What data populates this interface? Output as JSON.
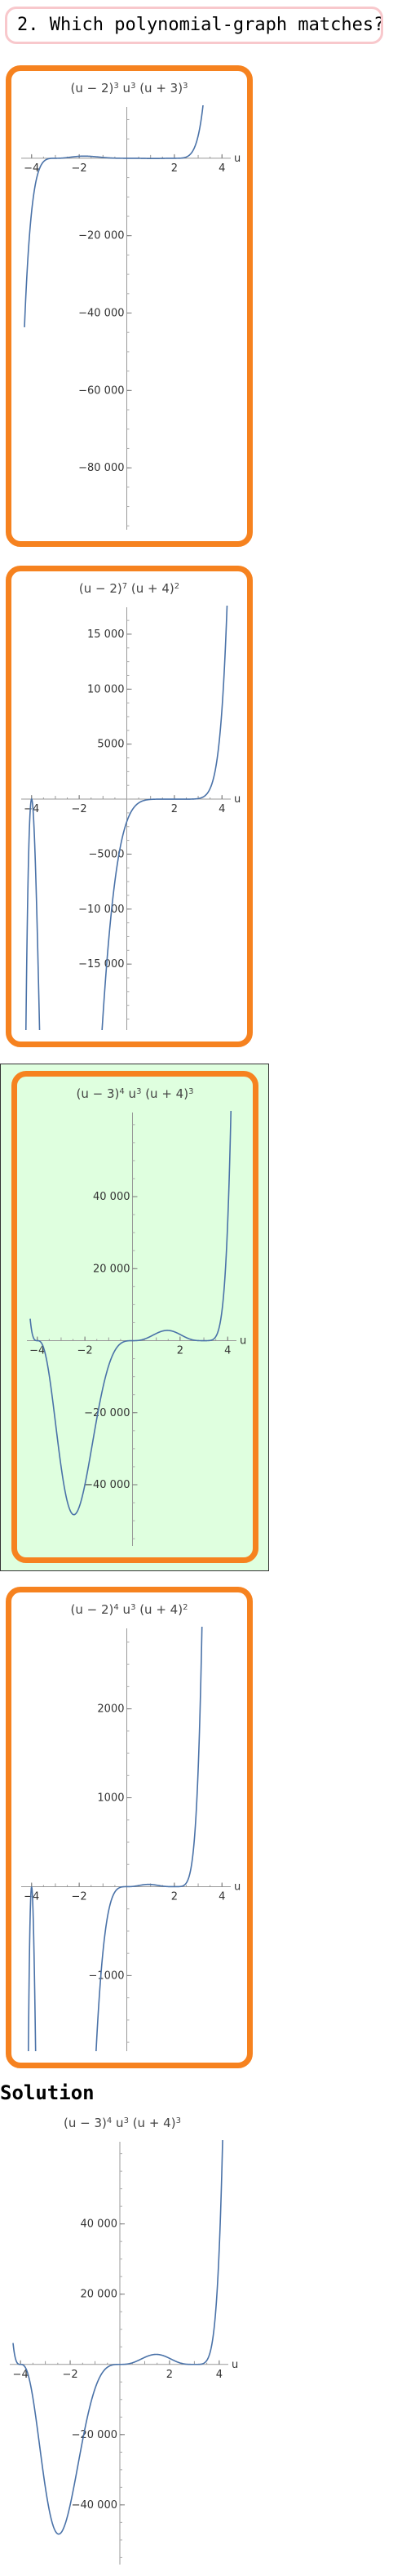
{
  "question": {
    "text": "2. Which polynomial-graph matches?"
  },
  "solution": {
    "label": "Solution"
  },
  "colors": {
    "choice_border": "#f6821f",
    "correct_bg": "#dfffdf",
    "curve": "#4a72a8",
    "question_border": "#f8c8cc"
  },
  "plots": [
    {
      "id": "choice-a",
      "title": {
        "base1": "(u − 2)",
        "exp1": "3",
        "mid": " u",
        "exp2": "3",
        "base3": " (u + 3)",
        "exp3": "3"
      },
      "chart_data": {
        "type": "line",
        "function": "(u-2)^3 u^3 (u+3)^3",
        "x_label": "u",
        "xlim": [
          -4.3,
          4.3
        ],
        "ylim": [
          -96000,
          12000
        ],
        "x_ticks": [
          {
            "v": -4,
            "label": "−4"
          },
          {
            "v": -2,
            "label": "−2"
          },
          {
            "v": 2,
            "label": "2"
          },
          {
            "v": 4,
            "label": "4"
          }
        ],
        "y_ticks": [
          {
            "v": -20000,
            "label": "−20 000"
          },
          {
            "v": -40000,
            "label": "−40 000"
          },
          {
            "v": -60000,
            "label": "−60 000"
          },
          {
            "v": -80000,
            "label": "−80 000"
          }
        ]
      }
    },
    {
      "id": "choice-b",
      "title": {
        "base1": "(u − 2)",
        "exp1": "7",
        "mid": " (u + 4)",
        "exp2": "2",
        "base3": "",
        "exp3": ""
      },
      "chart_data": {
        "type": "line",
        "function": "(u-2)^7 (u+4)^2",
        "x_label": "u",
        "xlim": [
          -4.3,
          4.3
        ],
        "ylim": [
          -21000,
          17000
        ],
        "x_ticks": [
          {
            "v": -4,
            "label": "−4"
          },
          {
            "v": -2,
            "label": "−2"
          },
          {
            "v": 2,
            "label": "2"
          },
          {
            "v": 4,
            "label": "4"
          }
        ],
        "y_ticks": [
          {
            "v": 15000,
            "label": "15 000"
          },
          {
            "v": 10000,
            "label": "10 000"
          },
          {
            "v": 5000,
            "label": "5000"
          },
          {
            "v": -5000,
            "label": "−5000"
          },
          {
            "v": -10000,
            "label": "−10 000"
          },
          {
            "v": -15000,
            "label": "−15 000"
          }
        ]
      }
    },
    {
      "id": "choice-c",
      "title": {
        "base1": "(u − 3)",
        "exp1": "4",
        "mid": " u",
        "exp2": "3",
        "base3": " (u + 4)",
        "exp3": "3"
      },
      "chart_data": {
        "type": "line",
        "function": "(u-3)^4 u^3 (u+4)^3",
        "x_label": "u",
        "xlim": [
          -4.3,
          4.3
        ],
        "ylim": [
          -57000,
          62000
        ],
        "x_ticks": [
          {
            "v": -4,
            "label": "−4"
          },
          {
            "v": -2,
            "label": "−2"
          },
          {
            "v": 2,
            "label": "2"
          },
          {
            "v": 4,
            "label": "4"
          }
        ],
        "y_ticks": [
          {
            "v": 40000,
            "label": "40 000"
          },
          {
            "v": 20000,
            "label": "20 000"
          },
          {
            "v": -20000,
            "label": "−20 000"
          },
          {
            "v": -40000,
            "label": "−40 000"
          }
        ]
      }
    },
    {
      "id": "choice-d",
      "title": {
        "base1": "(u − 2)",
        "exp1": "4",
        "mid": " u",
        "exp2": "3",
        "base3": " (u + 4)",
        "exp3": "2"
      },
      "chart_data": {
        "type": "line",
        "function": "(u-2)^4 u^3 (u+4)^2",
        "x_label": "u",
        "xlim": [
          -4.3,
          4.3
        ],
        "ylim": [
          -1850,
          2850
        ],
        "x_ticks": [
          {
            "v": -4,
            "label": "−4"
          },
          {
            "v": -2,
            "label": "−2"
          },
          {
            "v": 2,
            "label": "2"
          },
          {
            "v": 4,
            "label": "4"
          }
        ],
        "y_ticks": [
          {
            "v": 2000,
            "label": "2000"
          },
          {
            "v": 1000,
            "label": "1000"
          },
          {
            "v": -1000,
            "label": "−1000"
          }
        ]
      }
    },
    {
      "id": "solution",
      "title": {
        "base1": "(u − 3)",
        "exp1": "4",
        "mid": " u",
        "exp2": "3",
        "base3": " (u + 4)",
        "exp3": "3"
      },
      "chart_data": {
        "type": "line",
        "function": "(u-3)^4 u^3 (u+4)^3",
        "x_label": "u",
        "xlim": [
          -4.3,
          4.3
        ],
        "ylim": [
          -57000,
          62000
        ],
        "x_ticks": [
          {
            "v": -4,
            "label": "−4"
          },
          {
            "v": -2,
            "label": "−2"
          },
          {
            "v": 2,
            "label": "2"
          },
          {
            "v": 4,
            "label": "4"
          }
        ],
        "y_ticks": [
          {
            "v": 40000,
            "label": "40 000"
          },
          {
            "v": 20000,
            "label": "20 000"
          },
          {
            "v": -20000,
            "label": "−20 000"
          },
          {
            "v": -40000,
            "label": "−40 000"
          }
        ]
      }
    }
  ]
}
